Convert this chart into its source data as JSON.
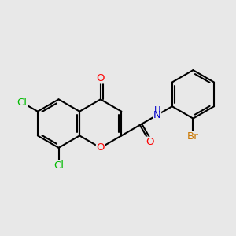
{
  "background_color": "#e8e8e8",
  "bond_color": "#000000",
  "bond_width": 1.5,
  "atom_colors": {
    "O": "#ff0000",
    "N": "#0000cc",
    "Cl": "#00bb00",
    "Br": "#cc7700"
  },
  "font_size": 9.5,
  "figsize": [
    3.0,
    3.0
  ],
  "dpi": 100
}
